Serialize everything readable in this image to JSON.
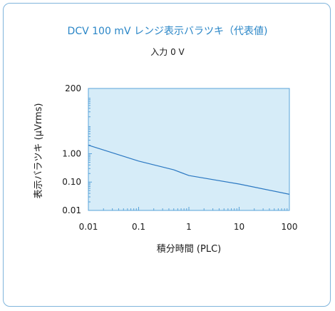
{
  "chart_data": {
    "type": "line",
    "title": "DCV 100 mV レンジ表示バラツキ（代表値)",
    "subtitle": "入力 0 V",
    "xlabel": "積分時間 (PLC)",
    "ylabel": "表示バラツキ (μVrms)",
    "x_scale": "log",
    "y_scale": "log",
    "xlim": [
      0.01,
      100
    ],
    "ylim": [
      0.01,
      200
    ],
    "x_ticks": [
      0.01,
      0.1,
      1,
      10,
      100
    ],
    "x_tick_labels": [
      "0.01",
      "0.1",
      "1",
      "10",
      "100"
    ],
    "y_ticks": [
      0.01,
      0.1,
      1,
      200
    ],
    "y_tick_labels": [
      "0.01",
      "0.10",
      "1.00",
      "200"
    ],
    "grid": false,
    "series": [
      {
        "x": [
          0.01,
          0.1,
          0.5,
          1,
          10,
          100
        ],
        "y": [
          2.0,
          0.55,
          0.27,
          0.17,
          0.085,
          0.037
        ]
      }
    ],
    "colors": {
      "line": "#2b78c2",
      "plot_background": "#d6ecf8",
      "plot_border": "#5aa3d9",
      "title": "#2a86c7",
      "frame": "#7fb4dc"
    }
  }
}
